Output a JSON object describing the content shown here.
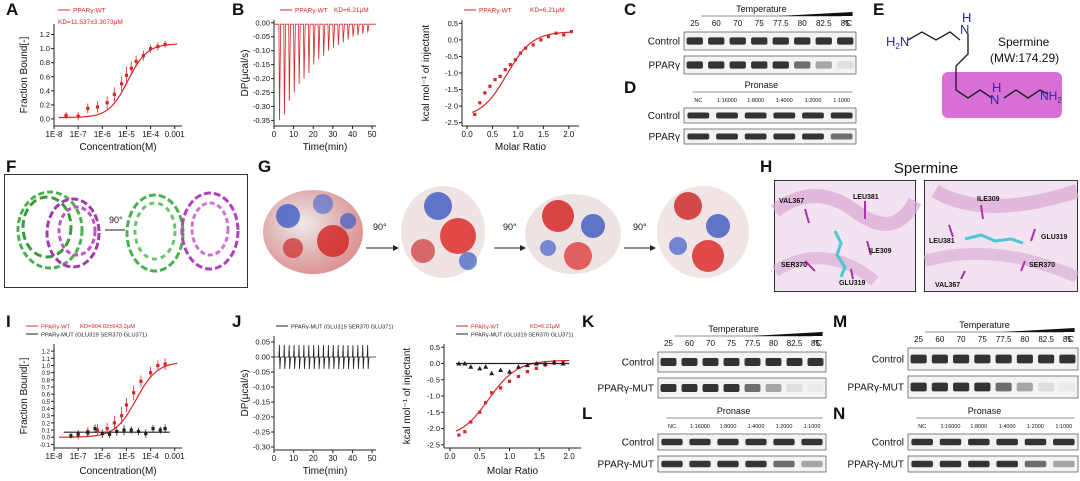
{
  "labels": {
    "A": "A",
    "B": "B",
    "C": "C",
    "D": "D",
    "E": "E",
    "F": "F",
    "G": "G",
    "H": "H",
    "I": "I",
    "J": "J",
    "K": "K",
    "L": "L",
    "M": "M",
    "N": "N"
  },
  "chart_data": [
    {
      "id": "A",
      "type": "scatter",
      "legend": [
        {
          "name": "PPARγ-WT",
          "color": "#d62728"
        }
      ],
      "annotation": "KD=11.537±3.3073μM",
      "xlabel": "Concentration(M)",
      "ylabel": "Fraction Bound[-]",
      "xticks": [
        "1E-8",
        "1E-7",
        "1E-6",
        "1E-5",
        "1E-4",
        "0.001"
      ],
      "yticks": [
        "0.0",
        "0.2",
        "0.4",
        "0.6",
        "0.8",
        "1.0",
        "1.2"
      ],
      "xlim_log": [
        -8,
        -2.7
      ],
      "ylim": [
        -0.1,
        1.35
      ],
      "series": [
        {
          "name": "PPARγ-WT",
          "color": "#d62728",
          "x": [
            -7.5,
            -7,
            -6.6,
            -6.2,
            -5.8,
            -5.5,
            -5.2,
            -5,
            -4.8,
            -4.6,
            -4.3,
            -4,
            -3.7,
            -3.4
          ],
          "y": [
            0.05,
            0.04,
            0.15,
            0.17,
            0.23,
            0.35,
            0.5,
            0.62,
            0.72,
            0.82,
            0.9,
            1.0,
            1.03,
            1.06
          ],
          "err": [
            0.05,
            0.06,
            0.07,
            0.08,
            0.09,
            0.1,
            0.1,
            0.12,
            0.1,
            0.08,
            0.07,
            0.06,
            0.06,
            0.05
          ]
        }
      ]
    },
    {
      "id": "B1",
      "type": "line",
      "legend": [
        {
          "name": "PPARγ-WT",
          "color": "#d62728"
        }
      ],
      "annotation": "KD=6.21μM",
      "xlabel": "Time(min)",
      "ylabel": "DP(μcal/s)",
      "xticks": [
        "0",
        "10",
        "20",
        "30",
        "40",
        "50"
      ],
      "yticks": [
        "0.00",
        "-0.05",
        "-0.10",
        "-0.15",
        "-0.20",
        "-0.25",
        "-0.30",
        "-0.35"
      ],
      "xlim": [
        0,
        52
      ],
      "ylim": [
        -0.37,
        0.01
      ],
      "spikes": {
        "start": 2.5,
        "step": 2.5,
        "count": 19,
        "depths": [
          -0.35,
          -0.33,
          -0.28,
          -0.25,
          -0.22,
          -0.2,
          -0.18,
          -0.15,
          -0.13,
          -0.12,
          -0.1,
          -0.09,
          -0.08,
          -0.07,
          -0.06,
          -0.05,
          -0.045,
          -0.04,
          -0.035
        ]
      }
    },
    {
      "id": "B2",
      "type": "scatter",
      "legend": [
        {
          "name": "PPARγ-WT",
          "color": "#d62728"
        }
      ],
      "annotation": "KD=6.21μM",
      "xlabel": "Molar Ratio",
      "ylabel": "kcal mol⁻¹ of injectant",
      "xticks": [
        "0.0",
        "0.5",
        "1.0",
        "1.5",
        "2.0"
      ],
      "yticks": [
        "0.5",
        "0.0",
        "-0.5",
        "-1.0",
        "-1.5",
        "-2.0",
        "-2.5"
      ],
      "xlim": [
        -0.1,
        2.2
      ],
      "ylim": [
        -2.6,
        0.6
      ],
      "series": [
        {
          "name": "PPARγ-WT",
          "color": "#d62728",
          "x": [
            0.15,
            0.25,
            0.35,
            0.45,
            0.55,
            0.65,
            0.75,
            0.85,
            0.95,
            1.05,
            1.15,
            1.3,
            1.45,
            1.6,
            1.75,
            1.9,
            2.05
          ],
          "y": [
            -2.25,
            -1.9,
            -1.6,
            -1.4,
            -1.2,
            -1.1,
            -0.9,
            -0.75,
            -0.6,
            -0.4,
            -0.25,
            -0.15,
            0.0,
            0.1,
            0.2,
            0.15,
            0.25
          ]
        }
      ]
    },
    {
      "id": "I",
      "type": "scatter",
      "legend": [
        {
          "name": "PPARγ-WT",
          "color": "#d62728"
        },
        {
          "name": "PPARγ-MUT (GLU319 SER370 GLU371)",
          "color": "#222222"
        }
      ],
      "annotation": "KD=904.02±643.2μM",
      "xlabel": "Concentration(M)",
      "ylabel": "Fraction Bound[-]",
      "xticks": [
        "1E-8",
        "1E-7",
        "1E-6",
        "1E-5",
        "1E-4",
        "0.001"
      ],
      "yticks": [
        "-0.1",
        "0.0",
        "0.1",
        "0.2",
        "0.3",
        "0.4",
        "0.5",
        "0.6",
        "0.7",
        "0.8",
        "0.9",
        "1.0",
        "1.1",
        "1.2"
      ],
      "xlim_log": [
        -8,
        -2.7
      ],
      "ylim": [
        -0.15,
        1.3
      ],
      "series": [
        {
          "name": "PPARγ-WT",
          "color": "#d62728",
          "x": [
            -7,
            -6.6,
            -6.2,
            -5.8,
            -5.5,
            -5.2,
            -5,
            -4.7,
            -4.4,
            -4,
            -3.7,
            -3.4
          ],
          "y": [
            0.02,
            0.08,
            0.1,
            0.12,
            0.2,
            0.3,
            0.45,
            0.62,
            0.78,
            0.9,
            1.0,
            1.02
          ],
          "err": [
            0.05,
            0.06,
            0.08,
            0.08,
            0.1,
            0.12,
            0.1,
            0.1,
            0.08,
            0.08,
            0.07,
            0.08
          ]
        },
        {
          "name": "PPARγ-MUT (GLU319 SER370 GLU371)",
          "color": "#222222",
          "x": [
            -7.3,
            -7,
            -6.6,
            -6.3,
            -6,
            -5.7,
            -5.4,
            -5.1,
            -4.8,
            -4.5,
            -4.2,
            -3.9,
            -3.6,
            -3.4
          ],
          "y": [
            0.02,
            0.05,
            0.06,
            0.12,
            0.05,
            0.04,
            0.08,
            0.1,
            0.1,
            0.08,
            0.05,
            0.12,
            0.1,
            0.12
          ],
          "err": [
            0.04,
            0.05,
            0.05,
            0.06,
            0.06,
            0.05,
            0.06,
            0.07,
            0.05,
            0.05,
            0.06,
            0.05,
            0.05,
            0.06
          ]
        }
      ]
    },
    {
      "id": "J1",
      "type": "line",
      "legend": [
        {
          "name": "PPARγ-MUT (GLU319 SER370 GLU371)",
          "color": "#222222"
        }
      ],
      "xlabel": "Time(min)",
      "ylabel": "DP(μcal/s)",
      "xticks": [
        "0",
        "10",
        "20",
        "30",
        "40",
        "50"
      ],
      "yticks": [
        "0.05",
        "0.00",
        "-0.05",
        "-0.10",
        "-0.15",
        "-0.20",
        "-0.25",
        "-0.30"
      ],
      "xlim": [
        0,
        52
      ],
      "ylim": [
        -0.31,
        0.07
      ],
      "spikes": {
        "start": 2.5,
        "step": 2.5,
        "count": 19
      }
    },
    {
      "id": "J2",
      "type": "scatter",
      "legend": [
        {
          "name": "PPARγ-WT",
          "color": "#d62728"
        },
        {
          "name": "PPARγ-MUT (GLU319 SER370 GLU371)",
          "color": "#222222"
        }
      ],
      "annotation": "KD=6.21μM",
      "xlabel": "Molar Ratio",
      "ylabel": "kcal mol⁻¹ of injectant",
      "xticks": [
        "0.0",
        "0.5",
        "1.0",
        "1.5",
        "2.0"
      ],
      "yticks": [
        "0.5",
        "0.0",
        "-0.5",
        "-1.0",
        "-1.5",
        "-2.0",
        "-2.5"
      ],
      "xlim": [
        -0.1,
        2.2
      ],
      "ylim": [
        -2.6,
        0.6
      ],
      "series": [
        {
          "name": "PPARγ-WT",
          "color": "#d62728",
          "x": [
            0.15,
            0.25,
            0.35,
            0.5,
            0.6,
            0.7,
            0.85,
            1.0,
            1.15,
            1.3,
            1.45,
            1.6,
            1.75,
            1.9
          ],
          "y": [
            -2.2,
            -2.1,
            -1.8,
            -1.5,
            -1.2,
            -0.9,
            -0.75,
            -0.55,
            -0.4,
            -0.25,
            -0.15,
            -0.05,
            0.0,
            0.05
          ]
        },
        {
          "name": "PPARγ-MUT (GLU319 SER370 GLU371)",
          "color": "#222222",
          "x": [
            0.15,
            0.25,
            0.35,
            0.5,
            0.6,
            0.7,
            0.85,
            1.0,
            1.15,
            1.3,
            1.45,
            1.6,
            1.75,
            1.9
          ],
          "y": [
            0.0,
            0.0,
            -0.1,
            -0.15,
            -0.1,
            -0.3,
            -0.2,
            -0.25,
            -0.1,
            -0.05,
            0.0,
            0.0,
            0.05,
            0.0
          ],
          "marker": "triangle"
        }
      ]
    }
  ],
  "blots": {
    "temperature_label": "Temperature",
    "pronase_label": "Pronase",
    "temps": [
      "25",
      "60",
      "70",
      "75",
      "77.5",
      "80",
      "82.5",
      "85",
      "°C"
    ],
    "ratios": [
      "NC",
      "1:16000",
      "1:8000",
      "1:4000",
      "1:2000",
      "1:1000"
    ],
    "C": {
      "rows": [
        "Control",
        "PPARγ"
      ]
    },
    "D": {
      "rows": [
        "Control",
        "PPARγ"
      ]
    },
    "K": {
      "rows": [
        "Control",
        "PPARγ-MUT"
      ]
    },
    "L": {
      "rows": [
        "Control",
        "PPARγ-MUT"
      ]
    },
    "M": {
      "rows": [
        "Control",
        "PPARγ-MUT"
      ]
    },
    "N": {
      "rows": [
        "Control",
        "PPARγ-MUT"
      ]
    }
  },
  "spermine": {
    "name": "Spermine",
    "mw": "(MW:174.29)",
    "n1": "H",
    "n1sub": "2",
    "n1post": "N",
    "n2": "H",
    "n2pre": "N",
    "n3": "H",
    "n3pre": "N",
    "n4": "NH",
    "n4sub": "2"
  },
  "panelG": {
    "rot": "90°"
  },
  "panelF": {
    "rot": "90°"
  },
  "panelH": {
    "title": "Spermine",
    "left": [
      "VAL367",
      "LEU381",
      "ILE309",
      "SER370",
      "GLU319"
    ],
    "right": [
      "ILE309",
      "LEU381",
      "GLU319",
      "SER370",
      "VAL367"
    ]
  }
}
